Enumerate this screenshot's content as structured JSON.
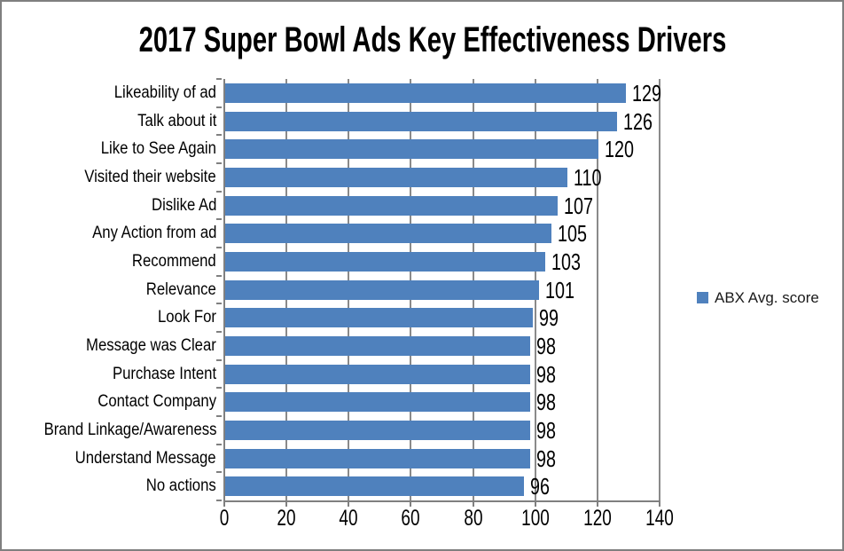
{
  "frame": {
    "background": "#FFFFFF",
    "border_color": "#7F7F7F"
  },
  "chart_data": {
    "type": "bar",
    "orientation": "horizontal",
    "title": "2017 Super Bowl Ads Key Effectiveness Drivers",
    "categories": [
      "Likeability of ad",
      "Talk about it",
      "Like to See Again",
      "Visited their website",
      "Dislike Ad",
      "Any Action from ad",
      "Recommend",
      "Relevance",
      "Look For",
      "Message was Clear",
      "Purchase Intent",
      "Contact Company",
      "Brand Linkage/Awareness",
      "Understand Message",
      "No actions"
    ],
    "values": [
      129,
      126,
      120,
      110,
      107,
      105,
      103,
      101,
      99,
      98,
      98,
      98,
      98,
      98,
      96
    ],
    "series": [
      {
        "name": "ABX Avg. score",
        "values": [
          129,
          126,
          120,
          110,
          107,
          105,
          103,
          101,
          99,
          98,
          98,
          98,
          98,
          98,
          96
        ]
      }
    ],
    "legend": {
      "label": "ABX Avg. score",
      "position": "right"
    },
    "xlabel": "",
    "ylabel": "",
    "xlim": [
      0,
      140
    ],
    "x_ticks": [
      0,
      20,
      40,
      60,
      80,
      100,
      120,
      140
    ],
    "grid": true,
    "data_labels": true,
    "colors": {
      "bar": "#4F81BD",
      "axis": "#808080",
      "gridline": "#8A8A8A",
      "text": "#000000",
      "legend_text": "#1A1A1A"
    }
  }
}
